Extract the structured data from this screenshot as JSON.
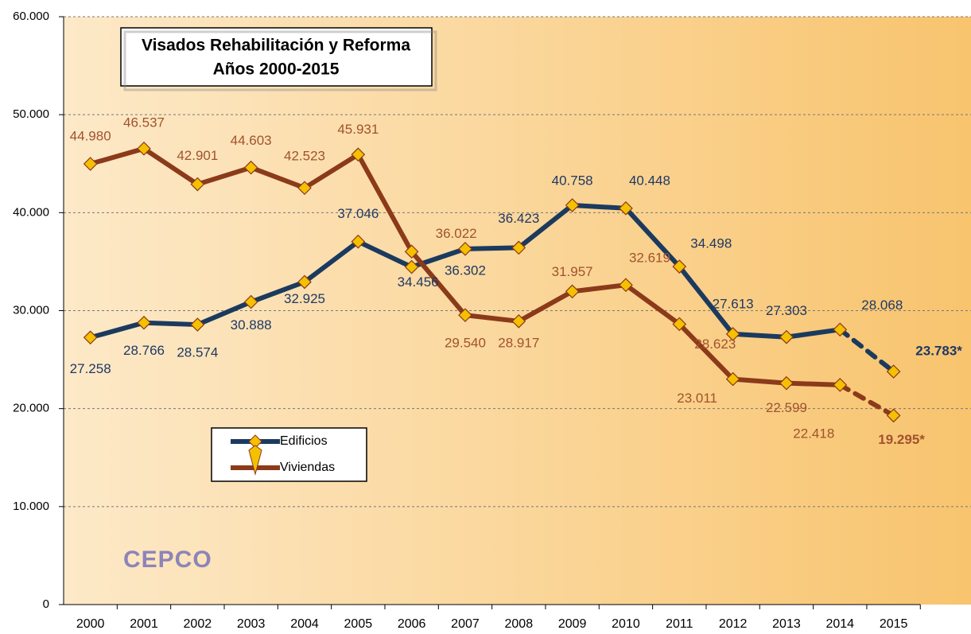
{
  "chart_data": {
    "type": "line",
    "title": "Visados Rehabilitación y Reforma",
    "subtitle": "Años 2000-2015",
    "logo": "CEPCO",
    "categories": [
      "2000",
      "2001",
      "2002",
      "2003",
      "2004",
      "2005",
      "2006",
      "2007",
      "2008",
      "2009",
      "2010",
      "2011",
      "2012",
      "2013",
      "2014",
      "2015"
    ],
    "series": [
      {
        "name": "Edificios",
        "color": "#1b3a5e",
        "label_color": "#1f3864",
        "dashed_last_segment": true,
        "values": [
          27258,
          28766,
          28574,
          30888,
          32925,
          37046,
          34456,
          36302,
          36423,
          40758,
          40448,
          34498,
          27613,
          27303,
          28068,
          23783
        ],
        "value_labels": [
          "27.258",
          "28.766",
          "28.574",
          "30.888",
          "32.925",
          "37.046",
          "34.456",
          "36.302",
          "36.423",
          "40.758",
          "40.448",
          "34.498",
          "27.613",
          "27.303",
          "28.068",
          "23.783*"
        ]
      },
      {
        "name": "Viviendas",
        "color": "#8b3a1a",
        "label_color": "#a0522d",
        "dashed_last_segment": true,
        "values": [
          44980,
          46537,
          42901,
          44603,
          42523,
          45931,
          36022,
          29540,
          28917,
          31957,
          32619,
          28623,
          23011,
          22599,
          22418,
          19295
        ],
        "value_labels": [
          "44.980",
          "46.537",
          "42.901",
          "44.603",
          "42.523",
          "45.931",
          "36.022",
          "29.540",
          "28.917",
          "31.957",
          "32.619",
          "28.623",
          "23.011",
          "22.599",
          "22.418",
          "19.295*"
        ]
      }
    ],
    "marker_color": "#f5c000",
    "ylim": [
      0,
      60000
    ],
    "yticks": [
      0,
      {
        "value": 10000,
        "label": "10.000"
      },
      {
        "value": 20000,
        "label": "20.000"
      },
      {
        "value": 30000,
        "label": "30.000"
      },
      {
        "value": 40000,
        "label": "40.000"
      },
      {
        "value": 50000,
        "label": "50.000"
      },
      {
        "value": 60000,
        "label": "60.000"
      }
    ],
    "grid": true
  }
}
